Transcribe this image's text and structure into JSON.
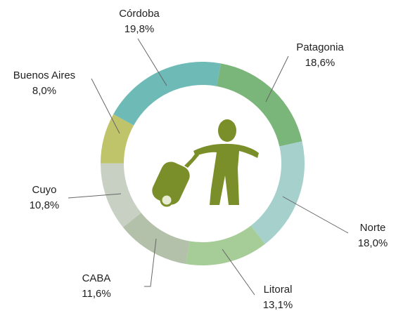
{
  "chart_data": {
    "type": "pie",
    "categories": [
      "Córdoba",
      "Patagonia",
      "Norte",
      "Litoral",
      "CABA",
      "Cuyo",
      "Buenos Aires"
    ],
    "values": [
      19.8,
      18.6,
      18.0,
      13.1,
      11.6,
      10.8,
      8.0
    ],
    "value_labels": [
      "19,8%",
      "18,6%",
      "18,0%",
      "13,1%",
      "11,6%",
      "10,8%",
      "8,0%"
    ],
    "colors": [
      "#6dbab6",
      "#7ab57a",
      "#a5d0cb",
      "#a6cc97",
      "#b3c0aa",
      "#c8d0c3",
      "#bfc36a"
    ]
  }
}
